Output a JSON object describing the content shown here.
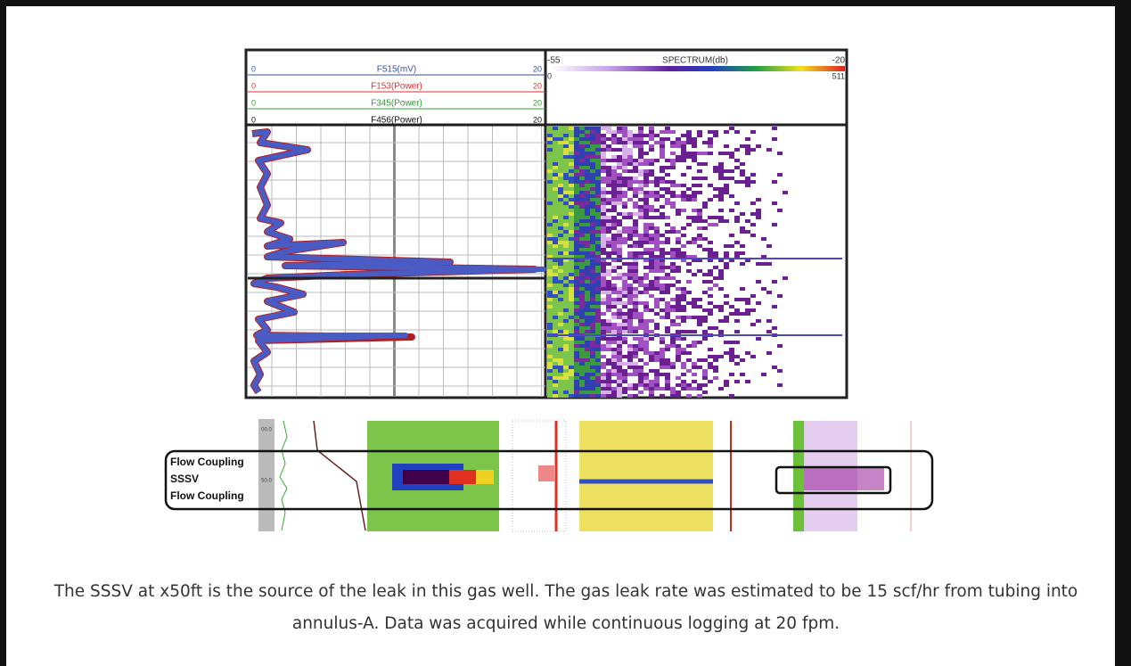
{
  "figure": {
    "log_header": {
      "tracks": [
        {
          "name": "F515(mV)",
          "min": 0,
          "max": 20
        },
        {
          "name": "F153(Power)",
          "min": 0,
          "max": 20
        },
        {
          "name": "F345(Power)",
          "min": 0,
          "max": 20
        },
        {
          "name": "F456(Power)",
          "min": 0,
          "max": 20
        }
      ]
    },
    "spectrum_header": {
      "title": "SPECTRUM(db)",
      "min": -55,
      "max": -20,
      "x_min": 0,
      "x_max": 511
    },
    "depth_labels": [
      "00.0",
      "50.0"
    ],
    "annotations": [
      "Flow Coupling",
      "SSSV",
      "Flow Coupling"
    ]
  },
  "caption": "The SSSV at x50ft is the source of the leak in this gas well. The gas leak rate was estimated to be 15 scf/hr from tubing into annulus-A. Data was acquired while continuous logging at 20 fpm."
}
